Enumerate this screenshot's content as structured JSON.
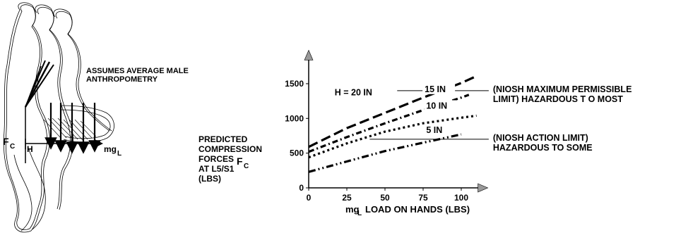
{
  "figure": {
    "assumption_line1": "ASSUMES AVERAGE MALE",
    "assumption_line2": "ANTHROPOMETRY",
    "fc_label": "F",
    "fc_sub": "C",
    "h_label": "H",
    "mg_label": "mg",
    "mg_sub": "L"
  },
  "ylabel": {
    "line1": "PREDICTED",
    "line2": "COMPRESSION",
    "line3": "FORCES",
    "fc": "F",
    "fc_sub": "C",
    "line4": "AT L5/S1",
    "line5": "(LBS)"
  },
  "chart_data": {
    "type": "line",
    "title": "",
    "xlabel_prefix": "mg",
    "xlabel_sub": "L",
    "xlabel": "LOAD ON HANDS (LBS)",
    "ylabel": "PREDICTED COMPRESSION FORCES F C AT L5/S1 (LBS)",
    "xlim": [
      0,
      110
    ],
    "ylim": [
      0,
      1800
    ],
    "x_ticks": [
      0,
      25,
      50,
      75,
      100
    ],
    "y_ticks": [
      0,
      500,
      1000,
      1500
    ],
    "x_tick_labels": [
      "0",
      "25",
      "50",
      "75",
      "100"
    ],
    "y_tick_labels": [
      "0",
      "500",
      "1000",
      "1500"
    ],
    "series": [
      {
        "name": "H = 20 IN",
        "dash": "14,6",
        "x": [
          0,
          25,
          50,
          75,
          100,
          110
        ],
        "y": [
          590,
          860,
          1080,
          1300,
          1510,
          1610
        ]
      },
      {
        "name": "15 IN",
        "dash": "8,4,2,4",
        "x": [
          0,
          25,
          50,
          75,
          100,
          105
        ],
        "y": [
          520,
          730,
          930,
          1120,
          1300,
          1340
        ]
      },
      {
        "name": "10 IN",
        "dash": "3,4",
        "x": [
          0,
          25,
          50,
          75,
          100,
          110
        ],
        "y": [
          440,
          640,
          810,
          930,
          1010,
          1040
        ]
      },
      {
        "name": "5 IN",
        "dash": "10,4,2,4,2,4",
        "x": [
          0,
          25,
          50,
          75,
          100
        ],
        "y": [
          230,
          380,
          530,
          650,
          770
        ]
      }
    ],
    "reference_lines": [
      {
        "y": 1400,
        "x_from": 58,
        "x_to": 118,
        "label_line1": "(NIOSH MAXIMUM PERMISSIBLE",
        "label_line2": "LIMIT) HAZARDOUS T O MOST"
      },
      {
        "y": 700,
        "x_from": 40,
        "x_to": 118,
        "label_line1": "(NIOSH ACTION LIMIT)",
        "label_line2": "HAZARDOUS TO SOME"
      }
    ],
    "grid": false,
    "legend": "inline labels"
  }
}
